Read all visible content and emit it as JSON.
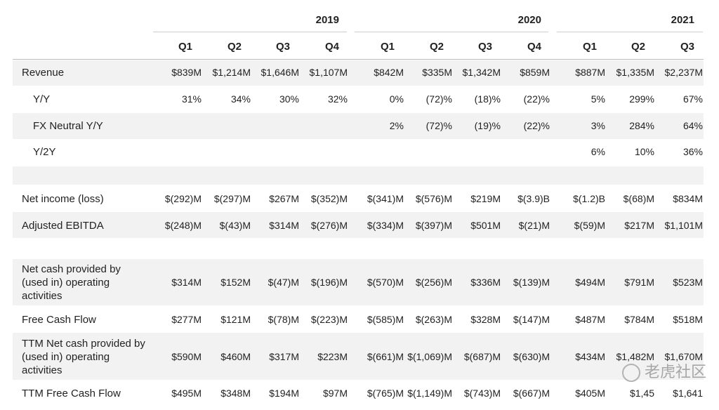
{
  "years": [
    "2019",
    "2020",
    "2021"
  ],
  "quarters": [
    "Q1",
    "Q2",
    "Q3",
    "Q4",
    "Q1",
    "Q2",
    "Q3",
    "Q4",
    "Q1",
    "Q2",
    "Q3"
  ],
  "rows": [
    {
      "label": "Revenue",
      "values": [
        "$839M",
        "$1,214M",
        "$1,646M",
        "$1,107M",
        "$842M",
        "$335M",
        "$1,342M",
        "$859M",
        "$887M",
        "$1,335M",
        "$2,237M"
      ]
    },
    {
      "label": "Y/Y",
      "values": [
        "31%",
        "34%",
        "30%",
        "32%",
        "0%",
        "(72)%",
        "(18)%",
        "(22)%",
        "5%",
        "299%",
        "67%"
      ]
    },
    {
      "label": "FX Neutral Y/Y",
      "values": [
        "",
        "",
        "",
        "",
        "2%",
        "(72)%",
        "(19)%",
        "(22)%",
        "3%",
        "284%",
        "64%"
      ]
    },
    {
      "label": "Y/2Y",
      "values": [
        "",
        "",
        "",
        "",
        "",
        "",
        "",
        "",
        "6%",
        "10%",
        "36%"
      ]
    },
    {
      "label": "Net income (loss)",
      "values": [
        "$(292)M",
        "$(297)M",
        "$267M",
        "$(352)M",
        "$(341)M",
        "$(576)M",
        "$219M",
        "$(3.9)B",
        "$(1.2)B",
        "$(68)M",
        "$834M"
      ]
    },
    {
      "label": "Adjusted EBITDA",
      "values": [
        "$(248)M",
        "$(43)M",
        "$314M",
        "$(276)M",
        "$(334)M",
        "$(397)M",
        "$501M",
        "$(21)M",
        "$(59)M",
        "$217M",
        "$1,101M"
      ]
    },
    {
      "label": "Net cash provided by (used in) operating activities",
      "values": [
        "$314M",
        "$152M",
        "$(47)M",
        "$(196)M",
        "$(570)M",
        "$(256)M",
        "$336M",
        "$(139)M",
        "$494M",
        "$791M",
        "$523M"
      ]
    },
    {
      "label": "Free Cash Flow",
      "values": [
        "$277M",
        "$121M",
        "$(78)M",
        "$(223)M",
        "$(585)M",
        "$(263)M",
        "$328M",
        "$(147)M",
        "$487M",
        "$784M",
        "$518M"
      ]
    },
    {
      "label": "TTM Net cash provided by (used in) operating activities",
      "values": [
        "$590M",
        "$460M",
        "$317M",
        "$223M",
        "$(661)M",
        "$(1,069)M",
        "$(687)M",
        "$(630)M",
        "$434M",
        "$1,482M",
        "$1,670M"
      ]
    },
    {
      "label": "TTM Free Cash Flow",
      "values": [
        "$495M",
        "$348M",
        "$194M",
        "$97M",
        "$(765)M",
        "$(1,149)M",
        "$(743)M",
        "$(667)M",
        "$405M",
        "$1,45",
        "$1,641"
      ]
    }
  ],
  "watermark": "老虎社区"
}
